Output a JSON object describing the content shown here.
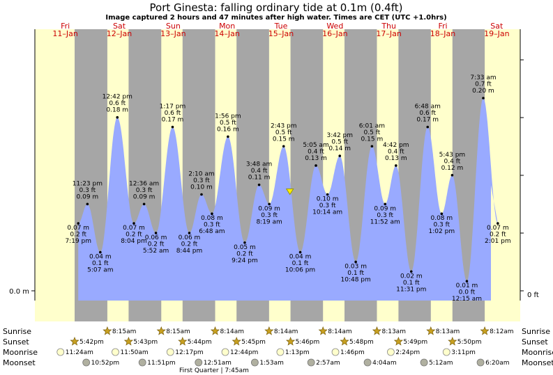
{
  "title": "Port Ginesta: falling  ordinary tide at 0.1m (0.4ft)",
  "subtitle": "Image captured 2 hours and 47 minutes after high water. Times are CET (UTC +1.0hrs)",
  "days": [
    {
      "dow": "Fri",
      "date": "11–Jan"
    },
    {
      "dow": "Sat",
      "date": "12–Jan"
    },
    {
      "dow": "Sun",
      "date": "13–Jan"
    },
    {
      "dow": "Mon",
      "date": "14–Jan"
    },
    {
      "dow": "Tue",
      "date": "15–Jan"
    },
    {
      "dow": "Wed",
      "date": "16–Jan"
    },
    {
      "dow": "Thu",
      "date": "17–Jan"
    },
    {
      "dow": "Fri",
      "date": "18–Jan"
    },
    {
      "dow": "Sat",
      "date": "19–Jan"
    }
  ],
  "left_axis_label": "0.0 m",
  "right_axis_label": "0 ft",
  "current_marker": {
    "date": "2019-01-15",
    "time": "17:30",
    "height_m": 0.1
  },
  "chart_data": {
    "type": "area",
    "title": "Port Ginesta: falling  ordinary tide at 0.1m (0.4ft)",
    "x_start": "2019-01-11 00:00",
    "x_end": "2019-01-19 24:00",
    "ylim_m": [
      -0.005,
      0.24
    ],
    "colors": {
      "tide": "#99aaff",
      "day": "#ffffcc",
      "night": "#a6a6a6",
      "marker": "#ffee00"
    },
    "extremes": [
      {
        "date": "2019-01-11",
        "time": "19:19",
        "m": 0.07,
        "ft": "0.2 ft",
        "time_label": "7:19 pm",
        "m_label": "0.07 m",
        "type": "low"
      },
      {
        "date": "2019-01-11",
        "time": "23:23",
        "m": 0.09,
        "ft": "0.3 ft",
        "time_label": "11:23 pm",
        "m_label": "0.09 m",
        "type": "high"
      },
      {
        "date": "2019-01-12",
        "time": "05:07",
        "m": 0.04,
        "ft": "0.1 ft",
        "time_label": "5:07 am",
        "m_label": "0.04 m",
        "type": "low"
      },
      {
        "date": "2019-01-12",
        "time": "12:42",
        "m": 0.18,
        "ft": "0.6 ft",
        "time_label": "12:42 pm",
        "m_label": "0.18 m",
        "type": "high"
      },
      {
        "date": "2019-01-12",
        "time": "20:04",
        "m": 0.07,
        "ft": "0.2 ft",
        "time_label": "8:04 pm",
        "m_label": "0.07 m",
        "type": "low"
      },
      {
        "date": "2019-01-13",
        "time": "00:36",
        "m": 0.09,
        "ft": "0.3 ft",
        "time_label": "12:36 am",
        "m_label": "0.09 m",
        "type": "high"
      },
      {
        "date": "2019-01-13",
        "time": "05:52",
        "m": 0.06,
        "ft": "0.2 ft",
        "time_label": "5:52 am",
        "m_label": "0.06 m",
        "type": "low"
      },
      {
        "date": "2019-01-13",
        "time": "13:17",
        "m": 0.17,
        "ft": "0.6 ft",
        "time_label": "1:17 pm",
        "m_label": "0.17 m",
        "type": "high"
      },
      {
        "date": "2019-01-13",
        "time": "20:44",
        "m": 0.06,
        "ft": "0.2 ft",
        "time_label": "8:44 pm",
        "m_label": "0.06 m",
        "type": "low"
      },
      {
        "date": "2019-01-14",
        "time": "02:10",
        "m": 0.1,
        "ft": "0.3 ft",
        "time_label": "2:10 am",
        "m_label": "0.10 m",
        "type": "high"
      },
      {
        "date": "2019-01-14",
        "time": "06:48",
        "m": 0.08,
        "ft": "0.3 ft",
        "time_label": "6:48 am",
        "m_label": "0.08 m",
        "type": "low"
      },
      {
        "date": "2019-01-14",
        "time": "13:56",
        "m": 0.16,
        "ft": "0.5 ft",
        "time_label": "1:56 pm",
        "m_label": "0.16 m",
        "type": "high"
      },
      {
        "date": "2019-01-14",
        "time": "21:24",
        "m": 0.05,
        "ft": "0.2 ft",
        "time_label": "9:24 pm",
        "m_label": "0.05 m",
        "type": "low"
      },
      {
        "date": "2019-01-15",
        "time": "03:48",
        "m": 0.11,
        "ft": "0.4 ft",
        "time_label": "3:48 am",
        "m_label": "0.11 m",
        "type": "high"
      },
      {
        "date": "2019-01-15",
        "time": "08:19",
        "m": 0.09,
        "ft": "0.3 ft",
        "time_label": "8:19 am",
        "m_label": "0.09 m",
        "type": "low"
      },
      {
        "date": "2019-01-15",
        "time": "14:43",
        "m": 0.15,
        "ft": "0.5 ft",
        "time_label": "2:43 pm",
        "m_label": "0.15 m",
        "type": "high"
      },
      {
        "date": "2019-01-15",
        "time": "22:06",
        "m": 0.04,
        "ft": "0.1 ft",
        "time_label": "10:06 pm",
        "m_label": "0.04 m",
        "type": "low"
      },
      {
        "date": "2019-01-16",
        "time": "05:05",
        "m": 0.13,
        "ft": "0.4 ft",
        "time_label": "5:05 am",
        "m_label": "0.13 m",
        "type": "high"
      },
      {
        "date": "2019-01-16",
        "time": "10:14",
        "m": 0.1,
        "ft": "0.3 ft",
        "time_label": "10:14 am",
        "m_label": "0.10 m",
        "type": "low"
      },
      {
        "date": "2019-01-16",
        "time": "15:42",
        "m": 0.14,
        "ft": "0.5 ft",
        "time_label": "3:42 pm",
        "m_label": "0.14 m",
        "type": "high"
      },
      {
        "date": "2019-01-16",
        "time": "22:48",
        "m": 0.03,
        "ft": "0.1 ft",
        "time_label": "10:48 pm",
        "m_label": "0.03 m",
        "type": "low"
      },
      {
        "date": "2019-01-17",
        "time": "06:01",
        "m": 0.15,
        "ft": "0.5 ft",
        "time_label": "6:01 am",
        "m_label": "0.15 m",
        "type": "high"
      },
      {
        "date": "2019-01-17",
        "time": "11:52",
        "m": 0.09,
        "ft": "0.3 ft",
        "time_label": "11:52 am",
        "m_label": "0.09 m",
        "type": "low"
      },
      {
        "date": "2019-01-17",
        "time": "16:42",
        "m": 0.13,
        "ft": "0.4 ft",
        "time_label": "4:42 pm",
        "m_label": "0.13 m",
        "type": "high"
      },
      {
        "date": "2019-01-17",
        "time": "23:31",
        "m": 0.02,
        "ft": "0.1 ft",
        "time_label": "11:31 pm",
        "m_label": "0.02 m",
        "type": "low"
      },
      {
        "date": "2019-01-18",
        "time": "06:48",
        "m": 0.17,
        "ft": "0.6 ft",
        "time_label": "6:48 am",
        "m_label": "0.17 m",
        "type": "high"
      },
      {
        "date": "2019-01-18",
        "time": "13:02",
        "m": 0.08,
        "ft": "0.3 ft",
        "time_label": "1:02 pm",
        "m_label": "0.08 m",
        "type": "low"
      },
      {
        "date": "2019-01-18",
        "time": "17:43",
        "m": 0.12,
        "ft": "0.4 ft",
        "time_label": "5:43 pm",
        "m_label": "0.12 m",
        "type": "high"
      },
      {
        "date": "2019-01-19",
        "time": "00:15",
        "m": 0.01,
        "ft": "0.0 ft",
        "time_label": "12:15 am",
        "m_label": "0.01 m",
        "type": "low"
      },
      {
        "date": "2019-01-19",
        "time": "07:33",
        "m": 0.2,
        "ft": "0.7 ft",
        "time_label": "7:33 am",
        "m_label": "0.20 m",
        "type": "high"
      },
      {
        "date": "2019-01-19",
        "time": "14:01",
        "m": 0.07,
        "ft": "0.2 ft",
        "time_label": "2:01 pm",
        "m_label": "0.07 m",
        "type": "low"
      }
    ],
    "sun_moon": {
      "row_labels": [
        "Sunrise",
        "Sunset",
        "Moonrise",
        "Moonset"
      ],
      "sunrise": [
        {
          "date": "2019-01-12",
          "time": "08:15",
          "label": "8:15am"
        },
        {
          "date": "2019-01-13",
          "time": "08:15",
          "label": "8:15am"
        },
        {
          "date": "2019-01-14",
          "time": "08:14",
          "label": "8:14am"
        },
        {
          "date": "2019-01-15",
          "time": "08:14",
          "label": "8:14am"
        },
        {
          "date": "2019-01-16",
          "time": "08:14",
          "label": "8:14am"
        },
        {
          "date": "2019-01-17",
          "time": "08:13",
          "label": "8:13am"
        },
        {
          "date": "2019-01-18",
          "time": "08:13",
          "label": "8:13am"
        },
        {
          "date": "2019-01-19",
          "time": "08:12",
          "label": "8:12am"
        }
      ],
      "sunset": [
        {
          "date": "2019-01-11",
          "time": "17:42",
          "label": "5:42pm"
        },
        {
          "date": "2019-01-12",
          "time": "17:43",
          "label": "5:43pm"
        },
        {
          "date": "2019-01-13",
          "time": "17:44",
          "label": "5:44pm"
        },
        {
          "date": "2019-01-14",
          "time": "17:45",
          "label": "5:45pm"
        },
        {
          "date": "2019-01-15",
          "time": "17:46",
          "label": "5:46pm"
        },
        {
          "date": "2019-01-16",
          "time": "17:48",
          "label": "5:48pm"
        },
        {
          "date": "2019-01-17",
          "time": "17:49",
          "label": "5:49pm"
        },
        {
          "date": "2019-01-18",
          "time": "17:50",
          "label": "5:50pm"
        }
      ],
      "moonrise": [
        {
          "date": "2019-01-11",
          "time": "11:24",
          "label": "11:24am"
        },
        {
          "date": "2019-01-12",
          "time": "11:50",
          "label": "11:50am"
        },
        {
          "date": "2019-01-13",
          "time": "12:17",
          "label": "12:17pm"
        },
        {
          "date": "2019-01-14",
          "time": "12:44",
          "label": "12:44pm"
        },
        {
          "date": "2019-01-15",
          "time": "13:13",
          "label": "1:13pm"
        },
        {
          "date": "2019-01-16",
          "time": "13:46",
          "label": "1:46pm"
        },
        {
          "date": "2019-01-17",
          "time": "14:24",
          "label": "2:24pm"
        },
        {
          "date": "2019-01-18",
          "time": "15:11",
          "label": "3:11pm"
        }
      ],
      "moonset": [
        {
          "date": "2019-01-11",
          "time": "22:52",
          "label": "10:52pm"
        },
        {
          "date": "2019-01-12",
          "time": "23:51",
          "label": "11:51pm"
        },
        {
          "date": "2019-01-14",
          "time": "00:51",
          "label": "12:51am"
        },
        {
          "date": "2019-01-15",
          "time": "01:53",
          "label": "1:53am"
        },
        {
          "date": "2019-01-16",
          "time": "02:57",
          "label": "2:57am"
        },
        {
          "date": "2019-01-17",
          "time": "04:04",
          "label": "4:04am"
        },
        {
          "date": "2019-01-18",
          "time": "05:12",
          "label": "5:12am"
        },
        {
          "date": "2019-01-19",
          "time": "06:20",
          "label": "6:20am"
        }
      ],
      "moon_phase": {
        "date": "2019-01-14",
        "time": "07:45",
        "label": "First Quarter | 7:45am"
      }
    }
  }
}
